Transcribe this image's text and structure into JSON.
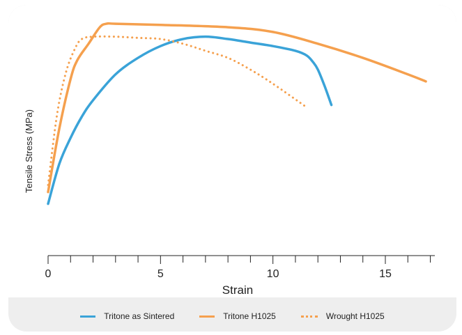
{
  "chart_data": {
    "type": "line",
    "title": "",
    "xlabel": "Strain",
    "ylabel": "Tensile Stress (MPa)",
    "xlim": [
      0,
      17.2
    ],
    "ylim": [
      0,
      1
    ],
    "x_ticks": [
      0,
      5,
      10,
      15
    ],
    "x_tick_labels": [
      "0",
      "5",
      "10",
      "15"
    ],
    "y_tick_labels": [],
    "grid": false,
    "legend_position": "bottom",
    "series": [
      {
        "name": "Tritone as Sintered",
        "color": "#3aa3d8",
        "style": "solid",
        "x": [
          0,
          0.5,
          1,
          1.5,
          2,
          3,
          4,
          5,
          6,
          7,
          8,
          9,
          10,
          11,
          11.5,
          11.8,
          12,
          12.3,
          12.6
        ],
        "y": [
          0.22,
          0.39,
          0.5,
          0.59,
          0.66,
          0.77,
          0.84,
          0.89,
          0.92,
          0.93,
          0.92,
          0.905,
          0.89,
          0.87,
          0.85,
          0.82,
          0.79,
          0.72,
          0.64
        ]
      },
      {
        "name": "Tritone H1025",
        "color": "#f5a04e",
        "style": "solid",
        "x": [
          0,
          0.5,
          1,
          1.3,
          1.8,
          2.3,
          2.6,
          3,
          5,
          8,
          10,
          12,
          14,
          16,
          16.8
        ],
        "y": [
          0.27,
          0.54,
          0.75,
          0.83,
          0.9,
          0.97,
          0.985,
          0.985,
          0.98,
          0.97,
          0.95,
          0.9,
          0.84,
          0.77,
          0.74
        ]
      },
      {
        "name": "Wrought H1025",
        "color": "#f5a04e",
        "style": "dotted",
        "x": [
          0,
          0.4,
          0.8,
          1.2,
          1.5,
          2,
          3,
          4,
          5,
          6,
          7,
          8,
          9,
          10,
          11.5
        ],
        "y": [
          0.3,
          0.6,
          0.78,
          0.88,
          0.92,
          0.93,
          0.93,
          0.925,
          0.92,
          0.9,
          0.87,
          0.84,
          0.79,
          0.73,
          0.63
        ]
      }
    ]
  }
}
